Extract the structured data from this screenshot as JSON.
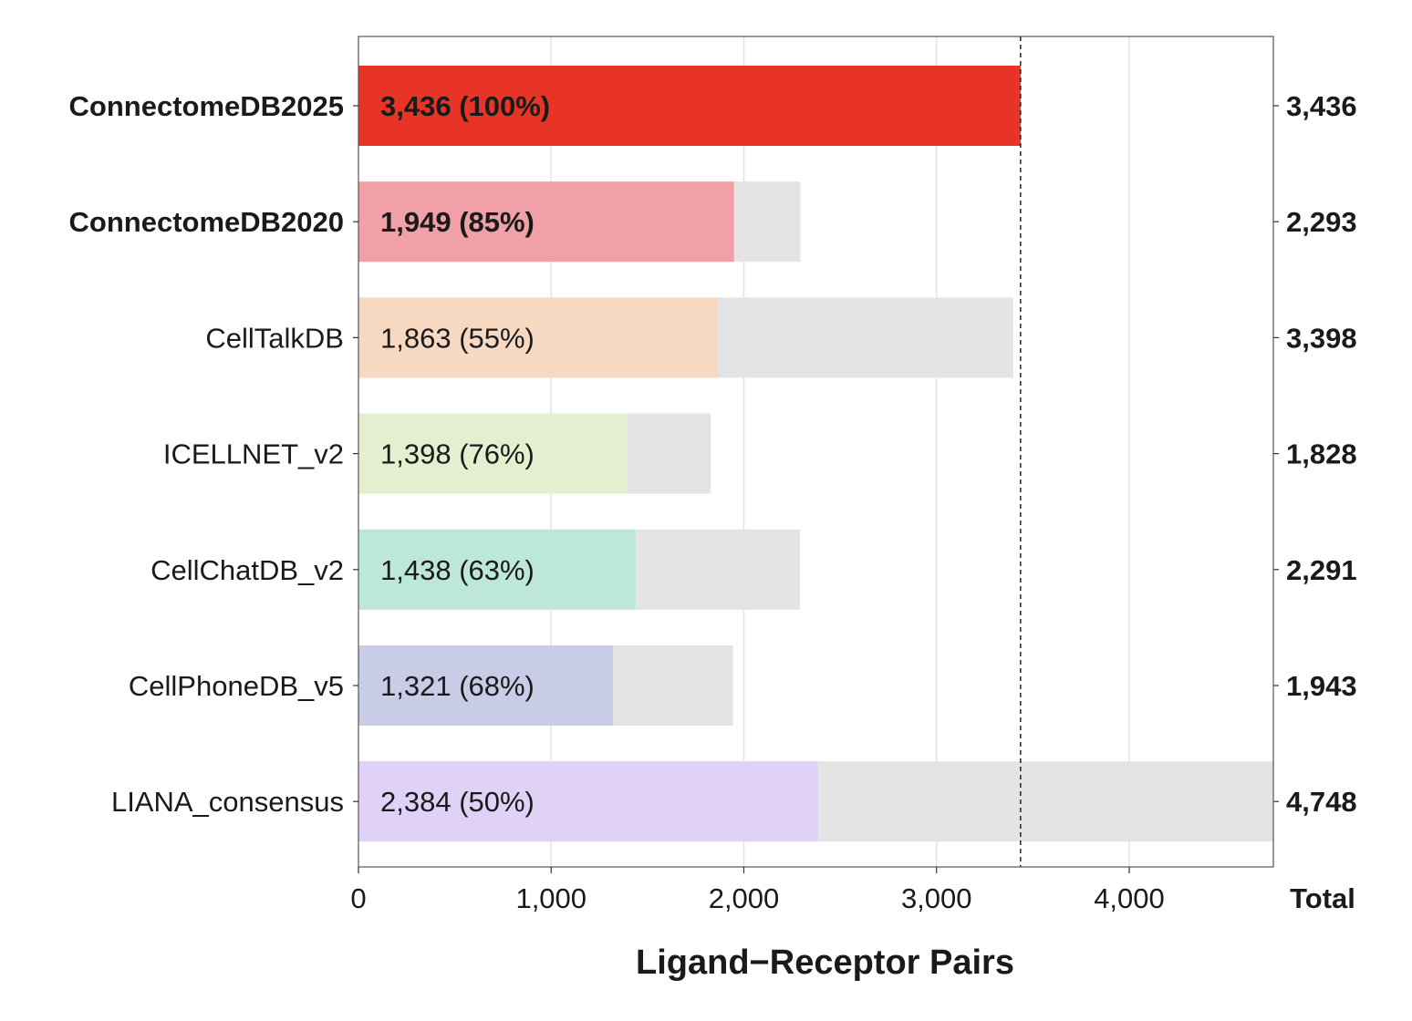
{
  "chart_data": {
    "type": "bar",
    "orientation": "horizontal",
    "xlabel": "Ligand−Receptor Pairs",
    "xlim": [
      0,
      4748
    ],
    "xticks": [
      0,
      1000,
      2000,
      3000,
      4000
    ],
    "xtick_labels": [
      "0",
      "1,000",
      "2,000",
      "3,000",
      "4,000"
    ],
    "grid": "vertical",
    "reference_line": 3436,
    "total_header": "Total",
    "categories": [
      "ConnectomeDB2025",
      "ConnectomeDB2020",
      "CellTalkDB",
      "ICELLNET_v2",
      "CellChatDB_v2",
      "CellPhoneDB_v5",
      "LIANA_consensus"
    ],
    "bold_categories": [
      "ConnectomeDB2025",
      "ConnectomeDB2020"
    ],
    "series": [
      {
        "name": "overlap",
        "values": [
          3436,
          1949,
          1863,
          1398,
          1438,
          1321,
          2384
        ],
        "labels": [
          "3,436 (100%)",
          "1,949 (85%)",
          "1,863 (55%)",
          "1,398 (76%)",
          "1,438 (63%)",
          "1,321 (68%)",
          "2,384 (50%)"
        ],
        "colors": [
          "#e83426",
          "#f0a0a6",
          "#f7d9c2",
          "#e4efcf",
          "#bde8d7",
          "#c8cce6",
          "#e0d1f7"
        ]
      },
      {
        "name": "total",
        "values": [
          3436,
          2293,
          3398,
          1828,
          2291,
          1943,
          4748
        ],
        "labels": [
          "3,436",
          "2,293",
          "3,398",
          "1,828",
          "2,291",
          "1,943",
          "4,748"
        ],
        "color": "#e3e4e3"
      }
    ]
  }
}
